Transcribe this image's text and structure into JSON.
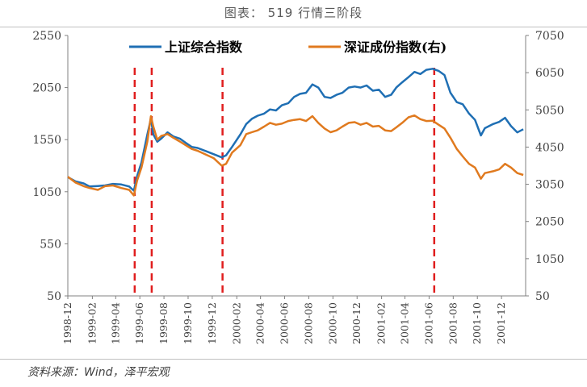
{
  "title": "图表： 519 行情三阶段",
  "source": "资料来源：Wind，泽平宏观",
  "colors": {
    "shanghai": "#1f6fb4",
    "shenzhen": "#e07a1f",
    "markers": "#e01e1e"
  },
  "chart_data": {
    "type": "line",
    "title": "图表： 519 行情三阶段",
    "legend_placement": "top",
    "grid": false,
    "x_ticks": [
      "1998-12",
      "1999-02",
      "1999-04",
      "1999-06",
      "1999-08",
      "1999-10",
      "1999-12",
      "2000-02",
      "2000-04",
      "2000-06",
      "2000-08",
      "2000-10",
      "2000-12",
      "2001-02",
      "2001-04",
      "2001-06",
      "2001-08",
      "2001-10",
      "2001-12"
    ],
    "y_left_ticks": [
      50,
      550,
      1050,
      1550,
      2050,
      2550
    ],
    "y_right_ticks": [
      50,
      1050,
      2050,
      3050,
      4050,
      5050,
      6050,
      7050
    ],
    "ylim_left": [
      50,
      2550
    ],
    "ylim_right": [
      50,
      7050
    ],
    "x_start": "1998-12-01",
    "x_end": "2002-01-31",
    "event_lines": [
      "1999-05-19",
      "1999-07-01",
      "1999-12-27",
      "2001-06-14"
    ],
    "series": [
      {
        "name": "上证综合指数",
        "axis": "left",
        "color": "#1f6fb4",
        "points": [
          [
            "1998-12-01",
            1190
          ],
          [
            "1998-12-20",
            1150
          ],
          [
            "1999-01-10",
            1130
          ],
          [
            "1999-01-25",
            1100
          ],
          [
            "1999-02-15",
            1105
          ],
          [
            "1999-03-05",
            1110
          ],
          [
            "1999-03-25",
            1125
          ],
          [
            "1999-04-15",
            1120
          ],
          [
            "1999-05-05",
            1100
          ],
          [
            "1999-05-17",
            1060
          ],
          [
            "1999-05-25",
            1200
          ],
          [
            "1999-06-05",
            1330
          ],
          [
            "1999-06-20",
            1600
          ],
          [
            "1999-06-29",
            1750
          ],
          [
            "1999-07-05",
            1600
          ],
          [
            "1999-07-15",
            1530
          ],
          [
            "1999-07-25",
            1560
          ],
          [
            "1999-08-10",
            1620
          ],
          [
            "1999-08-25",
            1580
          ],
          [
            "1999-09-10",
            1560
          ],
          [
            "1999-09-25",
            1520
          ],
          [
            "1999-10-10",
            1480
          ],
          [
            "1999-10-25",
            1470
          ],
          [
            "1999-11-15",
            1440
          ],
          [
            "1999-12-05",
            1410
          ],
          [
            "1999-12-25",
            1380
          ],
          [
            "2000-01-05",
            1400
          ],
          [
            "2000-01-20",
            1480
          ],
          [
            "2000-02-10",
            1600
          ],
          [
            "2000-02-25",
            1700
          ],
          [
            "2000-03-10",
            1750
          ],
          [
            "2000-03-25",
            1780
          ],
          [
            "2000-04-10",
            1800
          ],
          [
            "2000-04-25",
            1840
          ],
          [
            "2000-05-10",
            1830
          ],
          [
            "2000-05-25",
            1880
          ],
          [
            "2000-06-10",
            1900
          ],
          [
            "2000-06-25",
            1960
          ],
          [
            "2000-07-10",
            1990
          ],
          [
            "2000-07-25",
            2000
          ],
          [
            "2000-08-10",
            2080
          ],
          [
            "2000-08-25",
            2050
          ],
          [
            "2000-09-10",
            1960
          ],
          [
            "2000-09-25",
            1950
          ],
          [
            "2000-10-10",
            1980
          ],
          [
            "2000-10-25",
            2000
          ],
          [
            "2000-11-10",
            2050
          ],
          [
            "2000-11-25",
            2060
          ],
          [
            "2000-12-10",
            2050
          ],
          [
            "2000-12-25",
            2070
          ],
          [
            "2001-01-10",
            2020
          ],
          [
            "2001-01-25",
            2030
          ],
          [
            "2001-02-10",
            1960
          ],
          [
            "2001-02-25",
            1980
          ],
          [
            "2001-03-10",
            2050
          ],
          [
            "2001-03-25",
            2100
          ],
          [
            "2001-04-10",
            2150
          ],
          [
            "2001-04-25",
            2200
          ],
          [
            "2001-05-10",
            2180
          ],
          [
            "2001-05-25",
            2220
          ],
          [
            "2001-06-10",
            2230
          ],
          [
            "2001-06-25",
            2210
          ],
          [
            "2001-07-10",
            2170
          ],
          [
            "2001-07-25",
            2000
          ],
          [
            "2001-08-10",
            1910
          ],
          [
            "2001-08-25",
            1890
          ],
          [
            "2001-09-10",
            1800
          ],
          [
            "2001-09-25",
            1740
          ],
          [
            "2001-10-10",
            1590
          ],
          [
            "2001-10-20",
            1660
          ],
          [
            "2001-11-10",
            1700
          ],
          [
            "2001-11-25",
            1720
          ],
          [
            "2001-12-10",
            1760
          ],
          [
            "2001-12-25",
            1680
          ],
          [
            "2002-01-10",
            1620
          ],
          [
            "2002-01-25",
            1650
          ]
        ]
      },
      {
        "name": "深证成份指数(右)",
        "axis": "right",
        "color": "#e07a1f",
        "points": [
          [
            "1998-12-01",
            3250
          ],
          [
            "1998-12-20",
            3100
          ],
          [
            "1999-01-10",
            3000
          ],
          [
            "1999-01-25",
            2950
          ],
          [
            "1999-02-15",
            2900
          ],
          [
            "1999-03-05",
            3000
          ],
          [
            "1999-03-25",
            3020
          ],
          [
            "1999-04-15",
            2950
          ],
          [
            "1999-05-05",
            2900
          ],
          [
            "1999-05-17",
            2750
          ],
          [
            "1999-05-25",
            3150
          ],
          [
            "1999-06-05",
            3500
          ],
          [
            "1999-06-20",
            4200
          ],
          [
            "1999-06-29",
            4880
          ],
          [
            "1999-07-05",
            4600
          ],
          [
            "1999-07-15",
            4250
          ],
          [
            "1999-07-25",
            4350
          ],
          [
            "1999-08-10",
            4400
          ],
          [
            "1999-08-25",
            4300
          ],
          [
            "1999-09-10",
            4200
          ],
          [
            "1999-09-25",
            4100
          ],
          [
            "1999-10-10",
            4000
          ],
          [
            "1999-10-25",
            3950
          ],
          [
            "1999-11-15",
            3850
          ],
          [
            "1999-12-05",
            3750
          ],
          [
            "1999-12-25",
            3550
          ],
          [
            "2000-01-05",
            3600
          ],
          [
            "2000-01-20",
            3900
          ],
          [
            "2000-02-10",
            4100
          ],
          [
            "2000-02-25",
            4400
          ],
          [
            "2000-03-10",
            4450
          ],
          [
            "2000-03-25",
            4500
          ],
          [
            "2000-04-10",
            4600
          ],
          [
            "2000-04-25",
            4700
          ],
          [
            "2000-05-10",
            4650
          ],
          [
            "2000-05-25",
            4680
          ],
          [
            "2000-06-10",
            4750
          ],
          [
            "2000-06-25",
            4780
          ],
          [
            "2000-07-10",
            4800
          ],
          [
            "2000-07-25",
            4750
          ],
          [
            "2000-08-10",
            4880
          ],
          [
            "2000-08-25",
            4700
          ],
          [
            "2000-09-10",
            4550
          ],
          [
            "2000-09-25",
            4450
          ],
          [
            "2000-10-10",
            4500
          ],
          [
            "2000-10-25",
            4600
          ],
          [
            "2000-11-10",
            4700
          ],
          [
            "2000-11-25",
            4720
          ],
          [
            "2000-12-10",
            4650
          ],
          [
            "2000-12-25",
            4700
          ],
          [
            "2001-01-10",
            4600
          ],
          [
            "2001-01-25",
            4620
          ],
          [
            "2001-02-10",
            4500
          ],
          [
            "2001-02-25",
            4480
          ],
          [
            "2001-03-10",
            4580
          ],
          [
            "2001-03-25",
            4700
          ],
          [
            "2001-04-10",
            4850
          ],
          [
            "2001-04-25",
            4900
          ],
          [
            "2001-05-10",
            4800
          ],
          [
            "2001-05-25",
            4750
          ],
          [
            "2001-06-10",
            4760
          ],
          [
            "2001-06-25",
            4650
          ],
          [
            "2001-07-10",
            4550
          ],
          [
            "2001-07-25",
            4300
          ],
          [
            "2001-08-10",
            4000
          ],
          [
            "2001-08-25",
            3800
          ],
          [
            "2001-09-10",
            3600
          ],
          [
            "2001-09-25",
            3500
          ],
          [
            "2001-10-10",
            3200
          ],
          [
            "2001-10-20",
            3350
          ],
          [
            "2001-11-10",
            3400
          ],
          [
            "2001-11-25",
            3450
          ],
          [
            "2001-12-10",
            3600
          ],
          [
            "2001-12-25",
            3500
          ],
          [
            "2002-01-10",
            3350
          ],
          [
            "2002-01-25",
            3300
          ]
        ]
      }
    ]
  }
}
